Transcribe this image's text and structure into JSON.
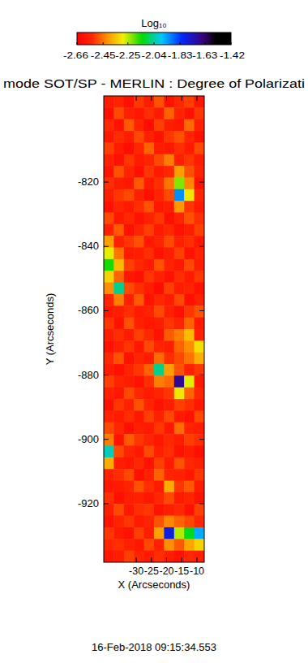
{
  "chart_data": {
    "type": "heatmap",
    "title": "mode SOT/SP - MERLIN : Degree of Polarizati",
    "xlabel": "X (Arcseconds)",
    "ylabel": "Y (Arcseconds)",
    "annotations": [
      "16-Feb-2018 09:15:34.553"
    ],
    "xlim": [
      -40.7,
      -7.6
    ],
    "ylim": [
      -938.2,
      -793.2
    ],
    "xticks": [
      -30,
      -25,
      -20,
      -15,
      -10
    ],
    "yticks": [
      -820,
      -840,
      -860,
      -880,
      -900,
      -920
    ],
    "colorbar": {
      "label": "Log₁₀",
      "range": [
        -2.66,
        -1.42
      ],
      "ticks": [
        -2.66,
        -2.45,
        -2.25,
        -2.04,
        -1.83,
        -1.63,
        -1.42
      ]
    },
    "x": [
      -39.05,
      -35.74,
      -32.43,
      -29.12,
      -25.81,
      -22.5,
      -19.19,
      -15.88,
      -12.57,
      -9.26
    ],
    "y": [
      -795.01,
      -798.64,
      -802.26,
      -805.89,
      -809.51,
      -813.14,
      -816.76,
      -820.39,
      -824.01,
      -827.64,
      -831.26,
      -834.89,
      -838.51,
      -842.14,
      -845.76,
      -849.39,
      -853.01,
      -856.64,
      -860.26,
      -863.89,
      -867.51,
      -871.14,
      -874.76,
      -878.39,
      -882.01,
      -885.64,
      -889.26,
      -892.89,
      -896.51,
      -900.14,
      -903.76,
      -907.39,
      -911.01,
      -914.64,
      -918.26,
      -921.89,
      -925.51,
      -929.14,
      -932.76,
      -936.39
    ],
    "values": [
      [
        -2.58,
        -2.55,
        -2.61,
        -2.52,
        -2.57,
        -2.49,
        -2.6,
        -2.54,
        -2.51,
        -2.59
      ],
      [
        -2.62,
        -2.5,
        -2.56,
        -2.59,
        -2.53,
        -2.58,
        -2.47,
        -2.55,
        -2.6,
        -2.52
      ],
      [
        -2.54,
        -2.6,
        -2.48,
        -2.55,
        -2.62,
        -2.51,
        -2.57,
        -2.59,
        -2.46,
        -2.56
      ],
      [
        -2.59,
        -2.53,
        -2.57,
        -2.5,
        -2.56,
        -2.6,
        -2.52,
        -2.49,
        -2.55,
        -2.61
      ],
      [
        -2.51,
        -2.58,
        -2.62,
        -2.54,
        -2.47,
        -2.57,
        -2.59,
        -2.53,
        -2.58,
        -2.5
      ],
      [
        -2.56,
        -2.61,
        -2.52,
        -2.58,
        -2.55,
        -2.5,
        -2.44,
        -2.56,
        -2.52,
        -2.57
      ],
      [
        -2.6,
        -2.49,
        -2.55,
        -2.61,
        -2.52,
        -2.58,
        -2.54,
        -2.4,
        -2.49,
        -2.55
      ],
      [
        -2.53,
        -2.57,
        -2.59,
        -2.48,
        -2.58,
        -2.53,
        -2.45,
        -2.22,
        -2.43,
        -2.6
      ],
      [
        -2.57,
        -2.52,
        -2.5,
        -2.56,
        -2.61,
        -2.55,
        -2.5,
        -1.92,
        -2.3,
        -2.54
      ],
      [
        -2.61,
        -2.55,
        -2.58,
        -2.53,
        -2.49,
        -2.59,
        -2.57,
        -2.41,
        -2.52,
        -2.58
      ],
      [
        -2.5,
        -2.59,
        -2.54,
        -2.6,
        -2.56,
        -2.52,
        -2.61,
        -2.55,
        -2.49,
        -2.53
      ],
      [
        -2.56,
        -2.48,
        -2.61,
        -2.55,
        -2.51,
        -2.58,
        -2.54,
        -2.6,
        -2.57,
        -2.51
      ],
      [
        -2.4,
        -2.56,
        -2.52,
        -2.49,
        -2.59,
        -2.55,
        -2.5,
        -2.56,
        -2.53,
        -2.59
      ],
      [
        -2.28,
        -2.45,
        -2.58,
        -2.57,
        -2.53,
        -2.6,
        -2.57,
        -2.51,
        -2.6,
        -2.55
      ],
      [
        -2.15,
        -2.36,
        -2.51,
        -2.54,
        -2.58,
        -2.49,
        -2.55,
        -2.59,
        -2.5,
        -2.57
      ],
      [
        -2.33,
        -2.47,
        -2.59,
        -2.61,
        -2.52,
        -2.56,
        -2.6,
        -2.53,
        -2.58,
        -2.52
      ],
      [
        -2.42,
        -2.05,
        -2.5,
        -2.53,
        -2.57,
        -2.62,
        -2.51,
        -2.57,
        -2.55,
        -2.6
      ],
      [
        -2.55,
        -2.44,
        -2.56,
        -2.48,
        -2.6,
        -2.54,
        -2.58,
        -2.5,
        -2.61,
        -2.56
      ],
      [
        -2.59,
        -2.57,
        -2.53,
        -2.58,
        -2.55,
        -2.5,
        -2.56,
        -2.61,
        -2.52,
        -2.49
      ],
      [
        -2.52,
        -2.6,
        -2.49,
        -2.56,
        -2.59,
        -2.57,
        -2.52,
        -2.55,
        -2.47,
        -2.58
      ],
      [
        -2.57,
        -2.53,
        -2.58,
        -2.51,
        -2.54,
        -2.6,
        -2.48,
        -2.44,
        -2.36,
        -2.55
      ],
      [
        -2.6,
        -2.56,
        -2.52,
        -2.59,
        -2.5,
        -2.55,
        -2.57,
        -2.47,
        -2.42,
        -2.31
      ],
      [
        -2.54,
        -2.49,
        -2.6,
        -2.55,
        -2.57,
        -2.46,
        -2.53,
        -2.5,
        -2.45,
        -2.38
      ],
      [
        -2.58,
        -2.61,
        -2.55,
        -2.52,
        -2.47,
        -2.05,
        -2.4,
        -2.49,
        -2.56,
        -2.52
      ],
      [
        -2.51,
        -2.55,
        -2.57,
        -2.6,
        -2.53,
        -2.44,
        -2.46,
        -1.68,
        -2.28,
        -2.58
      ],
      [
        -2.56,
        -2.59,
        -2.5,
        -2.54,
        -2.58,
        -2.55,
        -2.52,
        -2.3,
        -2.47,
        -2.54
      ],
      [
        -2.61,
        -2.52,
        -2.56,
        -2.49,
        -2.55,
        -2.6,
        -2.57,
        -2.51,
        -2.53,
        -2.59
      ],
      [
        -2.55,
        -2.58,
        -2.53,
        -2.59,
        -2.51,
        -2.56,
        -2.5,
        -2.58,
        -2.6,
        -2.5
      ],
      [
        -2.5,
        -2.54,
        -2.61,
        -2.56,
        -2.58,
        -2.52,
        -2.59,
        -2.46,
        -2.55,
        -2.57
      ],
      [
        -2.44,
        -2.6,
        -2.48,
        -2.52,
        -2.55,
        -2.59,
        -2.54,
        -2.57,
        -2.51,
        -2.53
      ],
      [
        -2.02,
        -2.5,
        -2.55,
        -2.58,
        -2.5,
        -2.56,
        -2.53,
        -2.6,
        -2.57,
        -2.61
      ],
      [
        -2.38,
        -2.57,
        -2.59,
        -2.54,
        -2.6,
        -2.51,
        -2.58,
        -2.49,
        -2.54,
        -2.56
      ],
      [
        -2.56,
        -2.53,
        -2.5,
        -2.61,
        -2.56,
        -2.47,
        -2.55,
        -2.56,
        -2.59,
        -2.52
      ],
      [
        -2.59,
        -2.58,
        -2.55,
        -2.49,
        -2.53,
        -2.58,
        -2.38,
        -2.52,
        -2.48,
        -2.57
      ],
      [
        -2.53,
        -2.61,
        -2.57,
        -2.56,
        -2.59,
        -2.54,
        -2.5,
        -2.58,
        -2.55,
        -2.6
      ],
      [
        -2.57,
        -2.5,
        -2.59,
        -2.53,
        -2.52,
        -2.6,
        -2.57,
        -2.54,
        -2.61,
        -2.51
      ],
      [
        -2.6,
        -2.55,
        -2.52,
        -2.58,
        -2.55,
        -2.49,
        -2.43,
        -2.47,
        -2.5,
        -2.54
      ],
      [
        -2.52,
        -2.58,
        -2.6,
        -2.51,
        -2.57,
        -2.4,
        -1.78,
        -2.25,
        -2.12,
        -1.95
      ],
      [
        -2.55,
        -2.53,
        -2.56,
        -2.59,
        -2.5,
        -2.56,
        -2.42,
        -2.48,
        -2.39,
        -2.33
      ],
      [
        -2.59,
        -2.57,
        -2.51,
        -2.55,
        -2.58,
        -2.53,
        -2.57,
        -2.6,
        -2.54,
        -2.56
      ]
    ]
  }
}
